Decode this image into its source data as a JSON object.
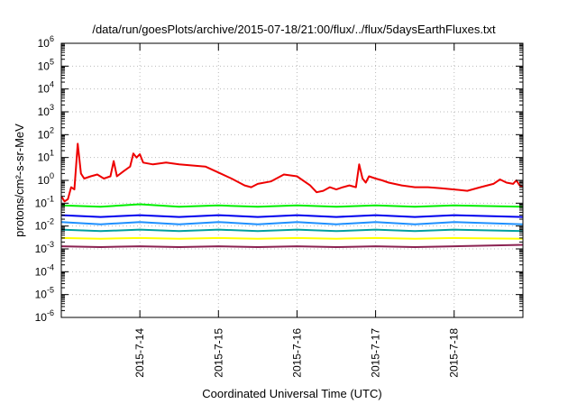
{
  "chart_data": {
    "type": "line",
    "title": "/data/run/goesPlots/archive/2015-07-18/21:00/flux/../flux/5daysEarthFluxes.txt",
    "xlabel": "Coordinated Universal Time (UTC)",
    "ylabel": "protons/cm²-s-sr-MeV",
    "x_axis": {
      "start": "2015-07-13 00:00",
      "end": "2015-07-18 21:00",
      "ticks": [
        "2015-7-14",
        "2015-7-15",
        "2015-7-16",
        "2015-7-17",
        "2015-7-18"
      ]
    },
    "y_axis": {
      "scale": "log",
      "range": [
        1e-06,
        1000000.0
      ],
      "ticks": [
        {
          "base": "10",
          "exp": "-6"
        },
        {
          "base": "10",
          "exp": "-5"
        },
        {
          "base": "10",
          "exp": "-4"
        },
        {
          "base": "10",
          "exp": "-3"
        },
        {
          "base": "10",
          "exp": "-2"
        },
        {
          "base": "10",
          "exp": "-1"
        },
        {
          "base": "10",
          "exp": "0"
        },
        {
          "base": "10",
          "exp": "1"
        },
        {
          "base": "10",
          "exp": "2"
        },
        {
          "base": "10",
          "exp": "3"
        },
        {
          "base": "10",
          "exp": "4"
        },
        {
          "base": "10",
          "exp": "5"
        },
        {
          "base": "10",
          "exp": "6"
        }
      ]
    },
    "grid": true,
    "series": [
      {
        "color": "#ee0000",
        "points": [
          [
            "2015-07-13 00:00",
            0.2
          ],
          [
            "2015-07-13 01:00",
            0.12
          ],
          [
            "2015-07-13 02:00",
            0.15
          ],
          [
            "2015-07-13 03:00",
            0.5
          ],
          [
            "2015-07-13 04:00",
            0.4
          ],
          [
            "2015-07-13 05:00",
            40
          ],
          [
            "2015-07-13 06:00",
            2
          ],
          [
            "2015-07-13 07:00",
            1.2
          ],
          [
            "2015-07-13 09:00",
            1.5
          ],
          [
            "2015-07-13 11:00",
            1.8
          ],
          [
            "2015-07-13 13:00",
            1.2
          ],
          [
            "2015-07-13 15:00",
            1.5
          ],
          [
            "2015-07-13 16:00",
            7
          ],
          [
            "2015-07-13 17:00",
            1.5
          ],
          [
            "2015-07-13 19:00",
            2.5
          ],
          [
            "2015-07-13 21:00",
            4
          ],
          [
            "2015-07-13 22:00",
            15
          ],
          [
            "2015-07-13 23:00",
            10
          ],
          [
            "2015-07-14 00:00",
            14
          ],
          [
            "2015-07-14 01:00",
            6
          ],
          [
            "2015-07-14 04:00",
            5
          ],
          [
            "2015-07-14 08:00",
            6
          ],
          [
            "2015-07-14 12:00",
            5
          ],
          [
            "2015-07-14 16:00",
            4.5
          ],
          [
            "2015-07-14 20:00",
            4
          ],
          [
            "2015-07-15 00:00",
            2.2
          ],
          [
            "2015-07-15 04:00",
            1.2
          ],
          [
            "2015-07-15 08:00",
            0.6
          ],
          [
            "2015-07-15 10:00",
            0.5
          ],
          [
            "2015-07-15 12:00",
            0.7
          ],
          [
            "2015-07-15 16:00",
            0.9
          ],
          [
            "2015-07-15 20:00",
            1.8
          ],
          [
            "2015-07-16 00:00",
            1.5
          ],
          [
            "2015-07-16 04:00",
            0.6
          ],
          [
            "2015-07-16 06:00",
            0.3
          ],
          [
            "2015-07-16 08:00",
            0.35
          ],
          [
            "2015-07-16 10:00",
            0.5
          ],
          [
            "2015-07-16 12:00",
            0.4
          ],
          [
            "2015-07-16 14:00",
            0.5
          ],
          [
            "2015-07-16 16:00",
            0.6
          ],
          [
            "2015-07-16 18:00",
            0.5
          ],
          [
            "2015-07-16 19:00",
            5
          ],
          [
            "2015-07-16 20:00",
            1.2
          ],
          [
            "2015-07-16 21:00",
            0.8
          ],
          [
            "2015-07-16 22:00",
            1.5
          ],
          [
            "2015-07-17 00:00",
            1.2
          ],
          [
            "2015-07-17 02:00",
            1.0
          ],
          [
            "2015-07-17 04:00",
            0.8
          ],
          [
            "2015-07-17 08:00",
            0.6
          ],
          [
            "2015-07-17 12:00",
            0.5
          ],
          [
            "2015-07-17 16:00",
            0.5
          ],
          [
            "2015-07-17 20:00",
            0.45
          ],
          [
            "2015-07-18 00:00",
            0.4
          ],
          [
            "2015-07-18 04:00",
            0.35
          ],
          [
            "2015-07-18 08:00",
            0.5
          ],
          [
            "2015-07-18 12:00",
            0.7
          ],
          [
            "2015-07-18 14:00",
            1.1
          ],
          [
            "2015-07-18 16:00",
            0.8
          ],
          [
            "2015-07-18 18:00",
            0.7
          ],
          [
            "2015-07-18 19:00",
            1.0
          ],
          [
            "2015-07-18 20:00",
            0.6
          ],
          [
            "2015-07-18 21:00",
            0.55
          ]
        ]
      },
      {
        "color": "#00ee00",
        "points": [
          [
            "2015-07-13 00:00",
            0.08
          ],
          [
            "2015-07-13 12:00",
            0.07
          ],
          [
            "2015-07-14 00:00",
            0.09
          ],
          [
            "2015-07-14 12:00",
            0.07
          ],
          [
            "2015-07-15 00:00",
            0.08
          ],
          [
            "2015-07-15 12:00",
            0.07
          ],
          [
            "2015-07-16 00:00",
            0.08
          ],
          [
            "2015-07-16 12:00",
            0.07
          ],
          [
            "2015-07-17 00:00",
            0.08
          ],
          [
            "2015-07-17 12:00",
            0.07
          ],
          [
            "2015-07-18 00:00",
            0.08
          ],
          [
            "2015-07-18 21:00",
            0.07
          ]
        ]
      },
      {
        "color": "#0000ee",
        "points": [
          [
            "2015-07-13 00:00",
            0.03
          ],
          [
            "2015-07-13 12:00",
            0.025
          ],
          [
            "2015-07-14 00:00",
            0.03
          ],
          [
            "2015-07-14 12:00",
            0.025
          ],
          [
            "2015-07-15 00:00",
            0.03
          ],
          [
            "2015-07-15 12:00",
            0.025
          ],
          [
            "2015-07-16 00:00",
            0.03
          ],
          [
            "2015-07-16 12:00",
            0.025
          ],
          [
            "2015-07-17 00:00",
            0.03
          ],
          [
            "2015-07-17 12:00",
            0.025
          ],
          [
            "2015-07-18 00:00",
            0.03
          ],
          [
            "2015-07-18 21:00",
            0.025
          ]
        ]
      },
      {
        "color": "#1e90ff",
        "points": [
          [
            "2015-07-13 00:00",
            0.015
          ],
          [
            "2015-07-13 12:00",
            0.012
          ],
          [
            "2015-07-14 00:00",
            0.015
          ],
          [
            "2015-07-14 12:00",
            0.012
          ],
          [
            "2015-07-15 00:00",
            0.015
          ],
          [
            "2015-07-15 12:00",
            0.012
          ],
          [
            "2015-07-16 00:00",
            0.015
          ],
          [
            "2015-07-16 12:00",
            0.012
          ],
          [
            "2015-07-17 00:00",
            0.015
          ],
          [
            "2015-07-17 12:00",
            0.012
          ],
          [
            "2015-07-18 00:00",
            0.015
          ],
          [
            "2015-07-18 21:00",
            0.012
          ]
        ]
      },
      {
        "color": "#00a0a0",
        "points": [
          [
            "2015-07-13 00:00",
            0.007
          ],
          [
            "2015-07-13 12:00",
            0.006
          ],
          [
            "2015-07-14 00:00",
            0.007
          ],
          [
            "2015-07-14 12:00",
            0.006
          ],
          [
            "2015-07-15 00:00",
            0.007
          ],
          [
            "2015-07-15 12:00",
            0.006
          ],
          [
            "2015-07-16 00:00",
            0.007
          ],
          [
            "2015-07-16 12:00",
            0.006
          ],
          [
            "2015-07-17 00:00",
            0.007
          ],
          [
            "2015-07-17 12:00",
            0.006
          ],
          [
            "2015-07-18 00:00",
            0.007
          ],
          [
            "2015-07-18 21:00",
            0.006
          ]
        ]
      },
      {
        "color": "#ffff00",
        "points": [
          [
            "2015-07-13 00:00",
            0.003
          ],
          [
            "2015-07-13 12:00",
            0.0028
          ],
          [
            "2015-07-14 00:00",
            0.003
          ],
          [
            "2015-07-14 12:00",
            0.0028
          ],
          [
            "2015-07-15 00:00",
            0.003
          ],
          [
            "2015-07-15 12:00",
            0.0028
          ],
          [
            "2015-07-16 00:00",
            0.003
          ],
          [
            "2015-07-16 12:00",
            0.0028
          ],
          [
            "2015-07-17 00:00",
            0.003
          ],
          [
            "2015-07-17 12:00",
            0.0028
          ],
          [
            "2015-07-18 00:00",
            0.003
          ],
          [
            "2015-07-18 21:00",
            0.0028
          ]
        ]
      },
      {
        "color": "#8b2252",
        "points": [
          [
            "2015-07-13 00:00",
            0.0013
          ],
          [
            "2015-07-13 12:00",
            0.0012
          ],
          [
            "2015-07-14 00:00",
            0.0013
          ],
          [
            "2015-07-14 12:00",
            0.0012
          ],
          [
            "2015-07-15 00:00",
            0.0013
          ],
          [
            "2015-07-15 12:00",
            0.0012
          ],
          [
            "2015-07-16 00:00",
            0.0013
          ],
          [
            "2015-07-16 12:00",
            0.0012
          ],
          [
            "2015-07-17 00:00",
            0.0013
          ],
          [
            "2015-07-17 12:00",
            0.0012
          ],
          [
            "2015-07-18 00:00",
            0.0013
          ],
          [
            "2015-07-18 21:00",
            0.0015
          ]
        ]
      }
    ]
  }
}
